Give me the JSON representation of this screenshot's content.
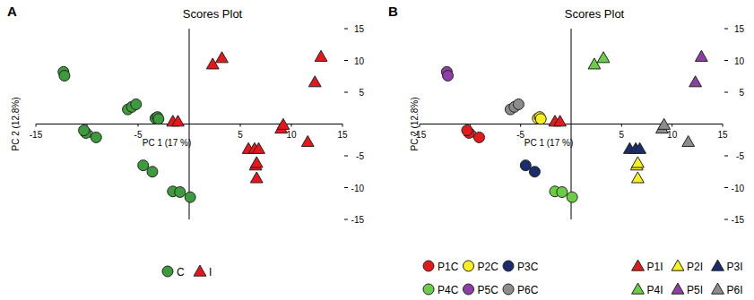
{
  "chart_data": [
    {
      "type": "scatter",
      "label": "A",
      "title": "Scores Plot",
      "x_label": "PC 1 (17 %)",
      "y_label": "PC 2 (12.8%)",
      "xlim": [
        -15,
        15
      ],
      "ylim": [
        -15,
        15
      ],
      "xticks": [
        -15,
        -10,
        -5,
        5,
        10,
        15
      ],
      "yticks": [
        -15,
        -10,
        -5,
        5,
        10,
        15
      ],
      "grid": false,
      "legend": "bottom",
      "series": [
        {
          "name": "C",
          "color": "#3d9a3d",
          "marker": "circle",
          "x": [
            -12.3,
            -12.2,
            -10.1,
            -10.3,
            -9.1,
            -6.0,
            -5.6,
            -5.2,
            -3.3,
            -3.1,
            -3.0,
            -4.5,
            -3.6,
            -1.6,
            -0.9,
            0.1
          ],
          "values": [
            8.2,
            7.6,
            -1.4,
            -1.0,
            -2.1,
            2.3,
            2.7,
            3.1,
            0.9,
            1.1,
            0.8,
            -6.5,
            -7.5,
            -10.6,
            -10.7,
            -11.5
          ]
        },
        {
          "name": "I",
          "color": "#e8161b",
          "marker": "triangle",
          "x": [
            2.3,
            3.2,
            -1.6,
            -1.1,
            5.8,
            6.4,
            6.8,
            6.5,
            6.6,
            6.6,
            9.0,
            9.2,
            11.6,
            12.9,
            12.3
          ],
          "values": [
            9.4,
            10.4,
            0.4,
            0.4,
            -3.9,
            -3.9,
            -3.9,
            -6.5,
            -6.1,
            -8.5,
            -0.7,
            -0.1,
            -2.8,
            10.6,
            6.6
          ]
        }
      ]
    },
    {
      "type": "scatter",
      "label": "B",
      "title": "Scores Plot",
      "x_label": "PC 1 (17 %)",
      "y_label": "PC 2 (12.8%)",
      "xlim": [
        -15,
        15
      ],
      "ylim": [
        -15,
        15
      ],
      "xticks": [
        -15,
        -10,
        -5,
        5,
        10,
        15
      ],
      "yticks": [
        -15,
        -10,
        -5,
        5,
        10,
        15
      ],
      "grid": false,
      "legend": "bottom",
      "series": [
        {
          "name": "P1C",
          "color": "#e31a1c",
          "marker": "circle",
          "x": [
            -10.1,
            -10.3,
            -9.1
          ],
          "values": [
            -1.4,
            -1.0,
            -2.1
          ]
        },
        {
          "name": "P2C",
          "color": "#f7ef1e",
          "marker": "circle",
          "x": [
            -3.3,
            -3.1,
            -3.0
          ],
          "values": [
            0.9,
            1.1,
            0.8
          ]
        },
        {
          "name": "P3C",
          "color": "#1b2c6b",
          "marker": "circle",
          "x": [
            -4.5,
            -3.6
          ],
          "values": [
            -6.5,
            -7.5
          ]
        },
        {
          "name": "P4C",
          "color": "#6acd45",
          "marker": "circle",
          "x": [
            -1.6,
            -0.9,
            0.1
          ],
          "values": [
            -10.6,
            -10.7,
            -11.5
          ]
        },
        {
          "name": "P5C",
          "color": "#8e3fa5",
          "marker": "circle",
          "x": [
            -12.3,
            -12.2
          ],
          "values": [
            8.2,
            7.6
          ]
        },
        {
          "name": "P6C",
          "color": "#8c8c8c",
          "marker": "circle",
          "x": [
            -6.0,
            -5.6,
            -5.2
          ],
          "values": [
            2.3,
            2.7,
            3.1
          ]
        },
        {
          "name": "P1I",
          "color": "#e31a1c",
          "marker": "triangle",
          "x": [
            -1.6,
            -1.1
          ],
          "values": [
            0.4,
            0.4
          ]
        },
        {
          "name": "P2I",
          "color": "#f7ef1e",
          "marker": "triangle",
          "x": [
            6.5,
            6.6,
            6.6
          ],
          "values": [
            -6.5,
            -6.1,
            -8.5
          ]
        },
        {
          "name": "P3I",
          "color": "#1b2c6b",
          "marker": "triangle",
          "x": [
            5.8,
            6.4,
            6.8
          ],
          "values": [
            -3.9,
            -3.9,
            -3.9
          ]
        },
        {
          "name": "P4I",
          "color": "#6acd45",
          "marker": "triangle",
          "x": [
            2.3,
            3.2
          ],
          "values": [
            9.4,
            10.4
          ]
        },
        {
          "name": "P5I",
          "color": "#8e3fa5",
          "marker": "triangle",
          "x": [
            12.9,
            12.3
          ],
          "values": [
            10.6,
            6.6
          ]
        },
        {
          "name": "P6I",
          "color": "#8c8c8c",
          "marker": "triangle",
          "x": [
            9.0,
            9.2,
            11.6
          ],
          "values": [
            -0.7,
            -0.1,
            -2.8
          ]
        }
      ]
    }
  ]
}
